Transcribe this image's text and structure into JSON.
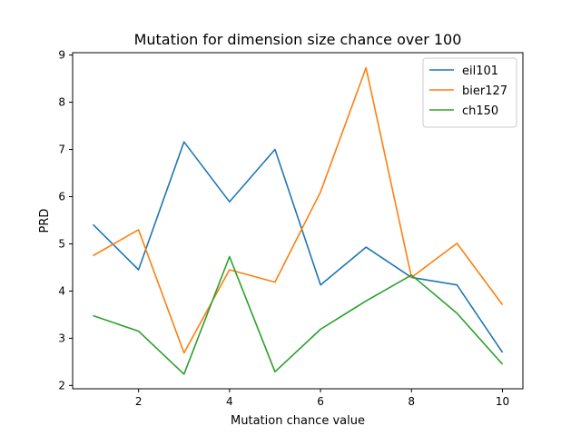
{
  "chart_data": {
    "type": "line",
    "title": "Mutation for dimension size chance over 100",
    "xlabel": "Mutation chance value",
    "ylabel": "PRD",
    "x": [
      1,
      2,
      3,
      4,
      5,
      6,
      7,
      8,
      9,
      10
    ],
    "xlim": [
      0.55,
      10.45
    ],
    "ylim": [
      1.93,
      9.05
    ],
    "xticks": [
      2,
      4,
      6,
      8,
      10
    ],
    "yticks": [
      2,
      3,
      4,
      5,
      6,
      7,
      8,
      9
    ],
    "grid": false,
    "legend_position": "top-right",
    "series": [
      {
        "name": "eil101",
        "color": "#1f77b4",
        "values": [
          5.41,
          4.45,
          7.16,
          5.89,
          7.0,
          4.13,
          4.93,
          4.29,
          4.13,
          2.7
        ]
      },
      {
        "name": "bier127",
        "color": "#ff7f0e",
        "values": [
          4.75,
          5.3,
          2.69,
          4.45,
          4.19,
          6.1,
          8.73,
          4.29,
          5.01,
          3.71
        ]
      },
      {
        "name": "ch150",
        "color": "#2ca02c",
        "values": [
          3.48,
          3.15,
          2.24,
          4.73,
          2.29,
          3.19,
          3.79,
          4.34,
          3.53,
          2.45
        ]
      }
    ]
  }
}
